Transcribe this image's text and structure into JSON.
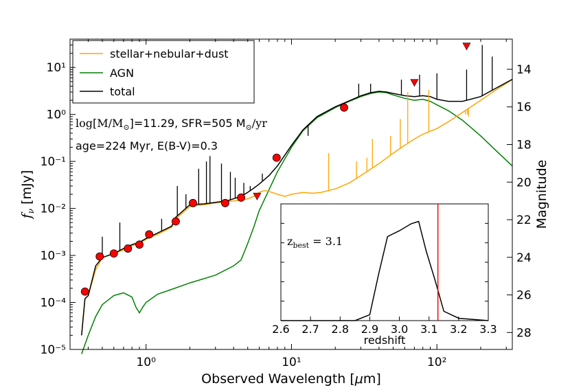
{
  "chart_data": {
    "type": "line",
    "xlabel": "Observed Wavelength [μm]",
    "ylabel": "f_ν [mJy]",
    "ylabel2": "Magnitude",
    "xscale": "log",
    "yscale": "log",
    "xlim": [
      0.3,
      330
    ],
    "ylim": [
      1e-05,
      40
    ],
    "grid": false,
    "legend_position": "top-left",
    "x_ticks": [
      {
        "value": 1,
        "label": "10⁰"
      },
      {
        "value": 10,
        "label": "10¹"
      },
      {
        "value": 100,
        "label": "10²"
      }
    ],
    "y_ticks": [
      {
        "value": 1e-05,
        "label": "10⁻⁵"
      },
      {
        "value": 0.0001,
        "label": "10⁻⁴"
      },
      {
        "value": 0.001,
        "label": "10⁻³"
      },
      {
        "value": 0.01,
        "label": "10⁻²"
      },
      {
        "value": 0.1,
        "label": "10⁻¹"
      },
      {
        "value": 1,
        "label": "10⁰"
      },
      {
        "value": 10,
        "label": "10¹"
      }
    ],
    "magnitude_ticks": [
      14,
      16,
      18,
      20,
      22,
      24,
      26,
      28
    ],
    "annotations": {
      "mass_sfr_prefix": "log[M/M",
      "mass_sfr_sub": "⊙",
      "mass_sfr_mid": "]=11.29, SFR=505 M",
      "mass_sfr_sub2": "⊙",
      "mass_sfr_suffix": "/yr",
      "age_ebv": "age=224 Myr, E(B-V)=0.3"
    },
    "series": [
      {
        "name": "stellar+nebular+dust",
        "color": "#ffa500",
        "points": [
          [
            0.36,
            2e-05
          ],
          [
            0.38,
            0.00012
          ],
          [
            0.4,
            0.00014
          ],
          [
            0.45,
            0.0005
          ],
          [
            0.5,
            0.0009
          ],
          [
            0.6,
            0.0011
          ],
          [
            0.7,
            0.0013
          ],
          [
            0.8,
            0.0016
          ],
          [
            0.9,
            0.0018
          ],
          [
            1.0,
            0.0022
          ],
          [
            1.2,
            0.0028
          ],
          [
            1.5,
            0.004
          ],
          [
            1.6,
            0.006
          ],
          [
            2.0,
            0.011
          ],
          [
            2.5,
            0.012
          ],
          [
            3.0,
            0.013
          ],
          [
            3.6,
            0.014
          ],
          [
            4.5,
            0.015
          ],
          [
            5.0,
            0.016
          ],
          [
            5.5,
            0.018
          ],
          [
            6.0,
            0.022
          ],
          [
            6.5,
            0.024
          ],
          [
            7.0,
            0.023
          ],
          [
            8.0,
            0.02
          ],
          [
            9.0,
            0.018
          ],
          [
            10.0,
            0.02
          ],
          [
            12.0,
            0.022
          ],
          [
            14.0,
            0.021
          ],
          [
            16.0,
            0.022
          ],
          [
            20.0,
            0.026
          ],
          [
            25.0,
            0.035
          ],
          [
            30.0,
            0.05
          ],
          [
            40.0,
            0.09
          ],
          [
            50.0,
            0.15
          ],
          [
            60.0,
            0.22
          ],
          [
            70.0,
            0.3
          ],
          [
            80.0,
            0.38
          ],
          [
            100.0,
            0.5
          ],
          [
            120.0,
            0.7
          ],
          [
            150.0,
            1.1
          ],
          [
            200.0,
            2.0
          ],
          [
            250.0,
            3.2
          ],
          [
            330.0,
            5.5
          ]
        ]
      },
      {
        "name": "AGN",
        "color": "#008000",
        "points": [
          [
            0.36,
            8e-06
          ],
          [
            0.4,
            2e-05
          ],
          [
            0.45,
            5e-05
          ],
          [
            0.5,
            9e-05
          ],
          [
            0.6,
            0.00014
          ],
          [
            0.7,
            0.00016
          ],
          [
            0.8,
            0.00013
          ],
          [
            0.85,
            8e-05
          ],
          [
            0.9,
            6e-05
          ],
          [
            0.95,
            8e-05
          ],
          [
            1.0,
            0.0001
          ],
          [
            1.2,
            0.00015
          ],
          [
            1.5,
            0.00019
          ],
          [
            2.0,
            0.00026
          ],
          [
            3.0,
            0.00038
          ],
          [
            4.0,
            0.0006
          ],
          [
            4.5,
            0.0008
          ],
          [
            5.0,
            0.0018
          ],
          [
            5.5,
            0.004
          ],
          [
            6.0,
            0.009
          ],
          [
            7.0,
            0.025
          ],
          [
            8.0,
            0.06
          ],
          [
            10.0,
            0.2
          ],
          [
            12.0,
            0.45
          ],
          [
            15.0,
            0.85
          ],
          [
            20.0,
            1.4
          ],
          [
            25.0,
            1.9
          ],
          [
            30.0,
            2.4
          ],
          [
            35.0,
            2.8
          ],
          [
            40.0,
            3.0
          ],
          [
            45.0,
            2.9
          ],
          [
            50.0,
            2.6
          ],
          [
            60.0,
            2.2
          ],
          [
            70.0,
            2.0
          ],
          [
            80.0,
            2.1
          ],
          [
            90.0,
            1.9
          ],
          [
            100.0,
            1.6
          ],
          [
            120.0,
            1.2
          ],
          [
            150.0,
            0.75
          ],
          [
            200.0,
            0.35
          ],
          [
            250.0,
            0.18
          ],
          [
            330.0,
            0.08
          ]
        ]
      },
      {
        "name": "total",
        "color": "#000000",
        "points": [
          [
            0.36,
            2e-05
          ],
          [
            0.38,
            0.00012
          ],
          [
            0.4,
            0.00014
          ],
          [
            0.45,
            0.0006
          ],
          [
            0.5,
            0.0009
          ],
          [
            0.6,
            0.0011
          ],
          [
            0.7,
            0.0014
          ],
          [
            0.8,
            0.0017
          ],
          [
            0.9,
            0.0019
          ],
          [
            1.0,
            0.0023
          ],
          [
            1.2,
            0.003
          ],
          [
            1.5,
            0.0042
          ],
          [
            1.6,
            0.0065
          ],
          [
            2.0,
            0.012
          ],
          [
            2.5,
            0.0125
          ],
          [
            3.0,
            0.0135
          ],
          [
            3.6,
            0.0145
          ],
          [
            4.5,
            0.018
          ],
          [
            5.0,
            0.022
          ],
          [
            5.5,
            0.027
          ],
          [
            6.0,
            0.033
          ],
          [
            7.0,
            0.05
          ],
          [
            8.0,
            0.08
          ],
          [
            10.0,
            0.22
          ],
          [
            12.0,
            0.47
          ],
          [
            15.0,
            0.9
          ],
          [
            20.0,
            1.45
          ],
          [
            25.0,
            1.95
          ],
          [
            30.0,
            2.5
          ],
          [
            35.0,
            2.9
          ],
          [
            40.0,
            3.1
          ],
          [
            45.0,
            3.0
          ],
          [
            50.0,
            2.8
          ],
          [
            60.0,
            2.5
          ],
          [
            70.0,
            2.4
          ],
          [
            80.0,
            2.5
          ],
          [
            90.0,
            2.4
          ],
          [
            100.0,
            2.1
          ],
          [
            120.0,
            1.9
          ],
          [
            150.0,
            1.9
          ],
          [
            200.0,
            2.4
          ],
          [
            250.0,
            3.5
          ],
          [
            330.0,
            5.6
          ]
        ]
      }
    ],
    "emission_lines_total": [
      [
        0.5,
        0.0025
      ],
      [
        0.66,
        0.005
      ],
      [
        1.28,
        0.006
      ],
      [
        1.64,
        0.03
      ],
      [
        1.88,
        0.02
      ],
      [
        2.3,
        0.07
      ],
      [
        2.6,
        0.1
      ],
      [
        2.75,
        0.13
      ],
      [
        3.3,
        0.09
      ],
      [
        3.8,
        0.06
      ],
      [
        4.1,
        0.045
      ],
      [
        4.7,
        0.035
      ],
      [
        5.2,
        0.03
      ],
      [
        6.3,
        0.055
      ],
      [
        13.0,
        0.35
      ],
      [
        29.0,
        4.5
      ],
      [
        35.0,
        4.5
      ],
      [
        57.0,
        5.5
      ],
      [
        76.0,
        7.0
      ],
      [
        100.0,
        7.5
      ],
      [
        160.0,
        9.0
      ],
      [
        205.0,
        30.0
      ],
      [
        240.0,
        17.0
      ]
    ],
    "emission_lines_stellar": [
      [
        18.0,
        0.15
      ],
      [
        28.0,
        0.1
      ],
      [
        33.0,
        0.12
      ],
      [
        36.0,
        0.3
      ],
      [
        48.0,
        0.35
      ],
      [
        56.0,
        0.8
      ],
      [
        63.0,
        3.0
      ],
      [
        88.0,
        3.3
      ],
      [
        157.0,
        1.0
      ],
      [
        162.0,
        1.0
      ],
      [
        165.0,
        0.9
      ]
    ],
    "observations": [
      [
        0.38,
        0.00017
      ],
      [
        0.48,
        0.00095
      ],
      [
        0.6,
        0.0011
      ],
      [
        0.75,
        0.0014
      ],
      [
        0.9,
        0.0017
      ],
      [
        1.05,
        0.0028
      ],
      [
        1.6,
        0.0053
      ],
      [
        2.1,
        0.013
      ],
      [
        3.5,
        0.013
      ],
      [
        4.5,
        0.017
      ],
      [
        7.9,
        0.12
      ],
      [
        23.0,
        1.4
      ]
    ],
    "upper_limits": [
      [
        5.8,
        0.018
      ],
      [
        70.0,
        4.7
      ],
      [
        160.0,
        28.0
      ]
    ],
    "inset": {
      "type": "line",
      "xlabel": "redshift",
      "xlim": [
        2.6,
        3.3
      ],
      "ylim": [
        0,
        1
      ],
      "x_ticks": [
        "2.6",
        "2.7",
        "2.8",
        "2.9",
        "3.0",
        "3.1",
        "3.2",
        "3.3"
      ],
      "label_prefix": "z",
      "label_sub": "best",
      "label_value": " = 3.1",
      "best_redshift_line": 3.13,
      "best_line_color": "#ff0000",
      "points": [
        [
          2.6,
          0.0
        ],
        [
          2.85,
          0.0
        ],
        [
          2.9,
          0.05
        ],
        [
          2.93,
          0.4
        ],
        [
          2.96,
          0.72
        ],
        [
          3.0,
          0.77
        ],
        [
          3.04,
          0.83
        ],
        [
          3.065,
          0.85
        ],
        [
          3.09,
          0.6
        ],
        [
          3.12,
          0.35
        ],
        [
          3.15,
          0.08
        ],
        [
          3.2,
          0.02
        ],
        [
          3.3,
          0.0
        ]
      ]
    }
  },
  "colors": {
    "stellar": "#ffa500",
    "agn": "#008000",
    "total": "#000000",
    "observation": "#ff0000",
    "redline": "#ff0000"
  }
}
